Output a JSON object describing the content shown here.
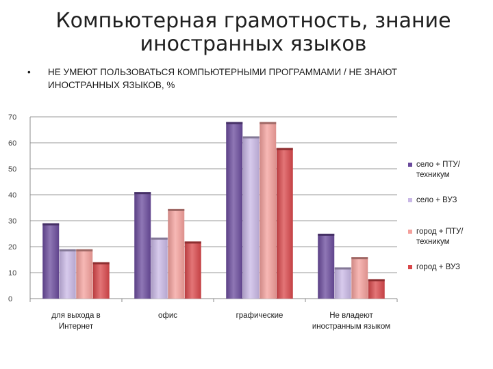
{
  "slide": {
    "title": "Компьютерная грамотность, знание иностранных языков",
    "bullet": "•",
    "subtitle": "НЕ УМЕЮТ ПОЛЬЗОВАТЬСЯ КОМПЬЮТЕРНЫМИ ПРОГРАММАМИ / НЕ ЗНАЮТ ИНОСТРАННЫХ ЯЗЫКОВ, %"
  },
  "chart_data": {
    "type": "bar",
    "title": "",
    "xlabel": "",
    "ylabel": "",
    "ylim": [
      0,
      70
    ],
    "yticks": [
      0,
      10,
      20,
      30,
      40,
      50,
      60,
      70
    ],
    "grid": true,
    "legend_position": "right",
    "categories": [
      "для выхода в Интернет",
      "офис",
      "графические",
      "Не владеют иностранным языком"
    ],
    "series": [
      {
        "name": "село + ПТУ/техникум",
        "color": "#6a4a9c",
        "values": [
          29,
          41,
          68,
          25
        ]
      },
      {
        "name": "село + ВУЗ",
        "color": "#c9b8e6",
        "values": [
          19,
          23.5,
          62.5,
          12
        ]
      },
      {
        "name": "город + ПТУ/техникум",
        "color": "#f4a09c",
        "values": [
          19,
          34.5,
          68,
          16
        ]
      },
      {
        "name": "город + ВУЗ",
        "color": "#d9474a",
        "values": [
          14,
          22,
          58,
          7.5
        ]
      }
    ]
  }
}
